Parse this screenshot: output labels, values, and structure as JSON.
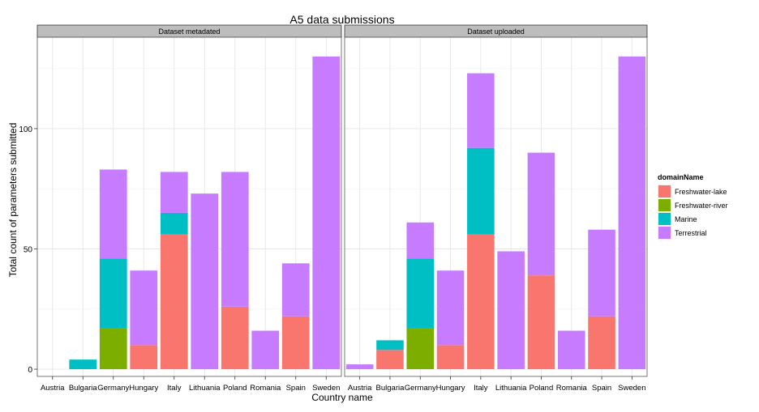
{
  "chart_data": {
    "type": "bar",
    "stacked": true,
    "faceted": true,
    "title": "A5 data submissions",
    "xlabel": "Country name",
    "ylabel": "Total count of parameters submitted",
    "ylim": [
      -3,
      138
    ],
    "yticks": [
      0,
      50,
      100
    ],
    "grid": true,
    "legend_position": "right",
    "legend_title": "domainName",
    "categories": [
      "Austria",
      "Bulgaria",
      "Germany",
      "Hungary",
      "Italy",
      "Lithuania",
      "Poland",
      "Romania",
      "Spain",
      "Sweden"
    ],
    "series_colors": {
      "Freshwater-lake": "#F8766D",
      "Freshwater-river": "#7CAE00",
      "Marine": "#00BFC4",
      "Terrestrial": "#C77CFF"
    },
    "series_names": [
      "Freshwater-lake",
      "Freshwater-river",
      "Marine",
      "Terrestrial"
    ],
    "panels": [
      {
        "strip": "Dataset metadated",
        "series": [
          {
            "name": "Freshwater-lake",
            "values": [
              0,
              0,
              0,
              10,
              56,
              0,
              26,
              0,
              22,
              0
            ]
          },
          {
            "name": "Freshwater-river",
            "values": [
              0,
              0,
              17,
              0,
              0,
              0,
              0,
              0,
              0,
              0
            ]
          },
          {
            "name": "Marine",
            "values": [
              0,
              4,
              29,
              0,
              9,
              0,
              0,
              0,
              0,
              0
            ]
          },
          {
            "name": "Terrestrial",
            "values": [
              0,
              0,
              37,
              31,
              17,
              73,
              56,
              16,
              22,
              130
            ]
          }
        ]
      },
      {
        "strip": "Dataset uploaded",
        "series": [
          {
            "name": "Freshwater-lake",
            "values": [
              0,
              8,
              0,
              10,
              56,
              0,
              39,
              0,
              22,
              0
            ]
          },
          {
            "name": "Freshwater-river",
            "values": [
              0,
              0,
              17,
              0,
              0,
              0,
              0,
              0,
              0,
              0
            ]
          },
          {
            "name": "Marine",
            "values": [
              0,
              4,
              29,
              0,
              36,
              0,
              0,
              0,
              0,
              0
            ]
          },
          {
            "name": "Terrestrial",
            "values": [
              2,
              0,
              15,
              31,
              31,
              49,
              51,
              16,
              36,
              130
            ]
          }
        ]
      }
    ]
  }
}
